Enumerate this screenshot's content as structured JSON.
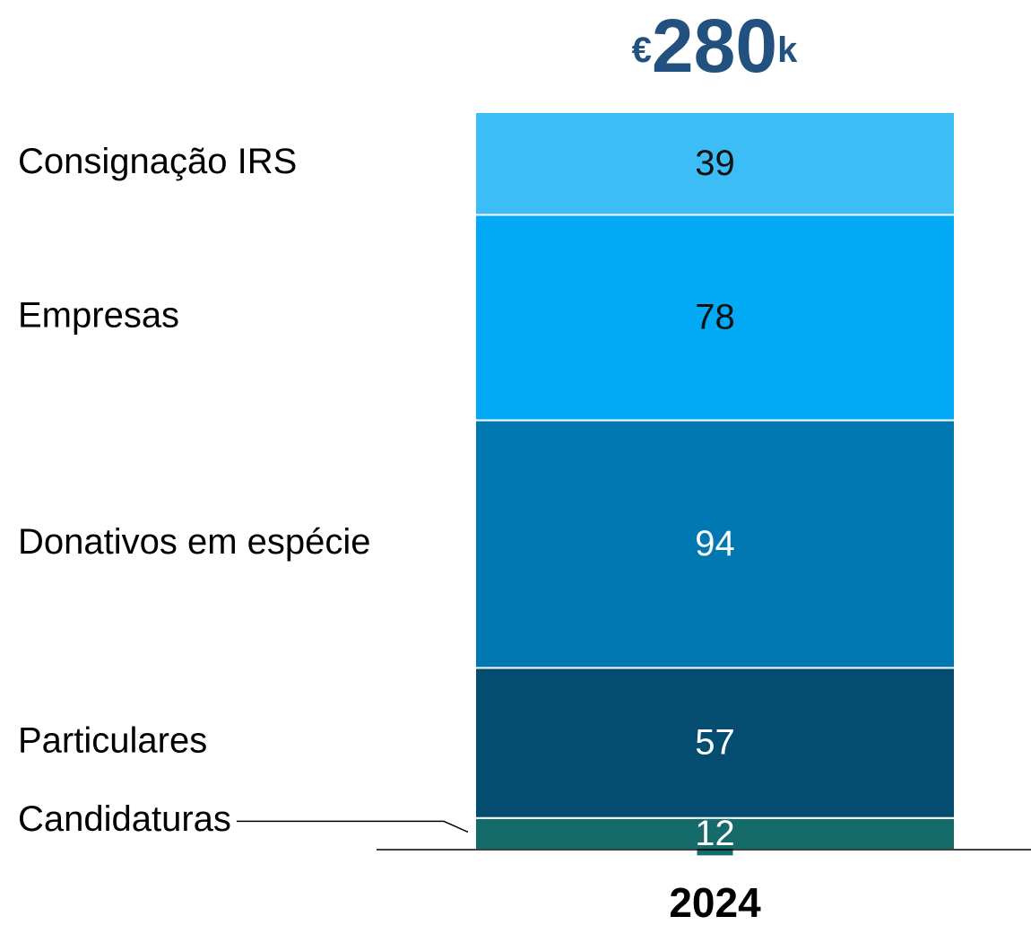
{
  "chart_data": {
    "type": "stacked_bar",
    "title": [
      "€",
      "280",
      "k"
    ],
    "categories": [
      "2024"
    ],
    "series": [
      {
        "name": "Candidaturas",
        "color": "#146b69",
        "label_color": "#ffffff",
        "values": [
          12
        ]
      },
      {
        "name": "Particulares",
        "color": "#044d70",
        "label_color": "#ffffff",
        "values": [
          57
        ]
      },
      {
        "name": "Donativos em espécie",
        "color": "#0278b3",
        "label_color": "#ffffff",
        "values": [
          94
        ]
      },
      {
        "name": "Empresas",
        "color": "#02a9f4",
        "label_color": "#111111",
        "values": [
          78
        ]
      },
      {
        "name": "Consignação IRS",
        "color": "#3dbdf5",
        "label_color": "#111111",
        "values": [
          39
        ]
      }
    ]
  }
}
